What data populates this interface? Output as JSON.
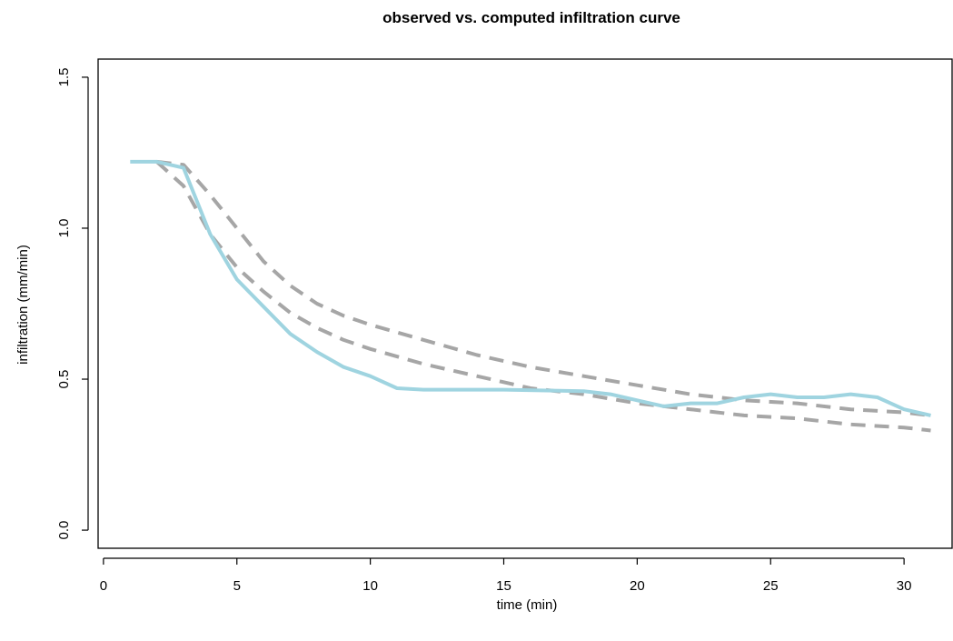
{
  "chart_data": {
    "type": "line",
    "title": "observed vs. computed infiltration curve",
    "xlabel": "time (min)",
    "ylabel": "infiltration (mm/min)",
    "xlim": [
      -0.2,
      31.8
    ],
    "ylim": [
      -0.06,
      1.56
    ],
    "xticks": [
      0,
      5,
      10,
      15,
      20,
      25,
      30
    ],
    "yticks": [
      0.0,
      0.5,
      1.0,
      1.5
    ],
    "xtick_labels": [
      "0",
      "5",
      "10",
      "15",
      "20",
      "25",
      "30"
    ],
    "ytick_labels": [
      "0.0",
      "0.5",
      "1.0",
      "1.5"
    ],
    "grid": false,
    "legend": "none",
    "series": [
      {
        "style": "dashed",
        "color": "#a6a6a6",
        "x": [
          2,
          3,
          4,
          5,
          6,
          7,
          8,
          9,
          10,
          12,
          14,
          16,
          18,
          20,
          22,
          24,
          26,
          28,
          30,
          31
        ],
        "y": [
          1.22,
          1.21,
          1.11,
          1.0,
          0.89,
          0.81,
          0.75,
          0.71,
          0.68,
          0.63,
          0.58,
          0.54,
          0.51,
          0.48,
          0.45,
          0.43,
          0.42,
          0.4,
          0.39,
          0.38
        ]
      },
      {
        "style": "dashed",
        "color": "#a6a6a6",
        "x": [
          2,
          3,
          4,
          5,
          6,
          7,
          8,
          9,
          10,
          12,
          14,
          16,
          18,
          20,
          22,
          24,
          26,
          28,
          30,
          31
        ],
        "y": [
          1.22,
          1.14,
          0.98,
          0.87,
          0.79,
          0.72,
          0.67,
          0.63,
          0.6,
          0.55,
          0.51,
          0.47,
          0.45,
          0.42,
          0.4,
          0.38,
          0.37,
          0.35,
          0.34,
          0.33
        ]
      },
      {
        "style": "solid",
        "color": "#9fd4e0",
        "x": [
          1,
          2,
          3,
          4,
          5,
          6,
          7,
          8,
          9,
          10,
          11,
          12,
          15,
          18,
          19,
          20,
          21,
          22,
          23,
          24,
          25,
          26,
          27,
          28,
          29,
          30,
          31
        ],
        "y": [
          1.22,
          1.22,
          1.2,
          0.98,
          0.83,
          0.74,
          0.65,
          0.59,
          0.54,
          0.51,
          0.47,
          0.465,
          0.465,
          0.46,
          0.45,
          0.43,
          0.41,
          0.42,
          0.42,
          0.44,
          0.45,
          0.44,
          0.44,
          0.45,
          0.44,
          0.4,
          0.38
        ]
      }
    ]
  }
}
